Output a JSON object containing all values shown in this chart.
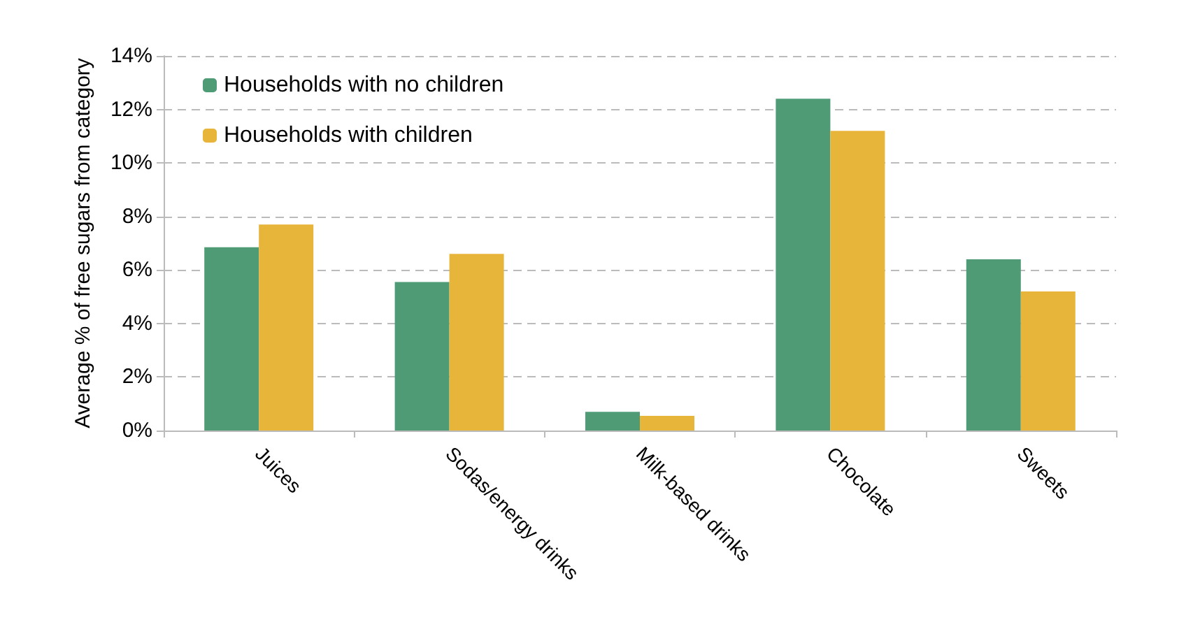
{
  "chart_data": {
    "type": "bar",
    "ylabel": "Average % of free sugars from category",
    "categories": [
      "Juices",
      "Sodas/energy drinks",
      "Milk-based drinks",
      "Chocolate",
      "Sweets"
    ],
    "series": [
      {
        "name": "Households with no children",
        "color": "#4e9b76",
        "values": [
          6.85,
          5.55,
          0.7,
          12.4,
          6.4
        ]
      },
      {
        "name": "Households with children",
        "color": "#e8b53b",
        "values": [
          7.7,
          6.6,
          0.55,
          11.2,
          5.2
        ]
      }
    ],
    "ylim": [
      0,
      14
    ],
    "yticks": [
      {
        "value": 0,
        "label": "0%"
      },
      {
        "value": 2,
        "label": "2%"
      },
      {
        "value": 4,
        "label": "4%"
      },
      {
        "value": 6,
        "label": "6%"
      },
      {
        "value": 8,
        "label": "8%"
      },
      {
        "value": 10,
        "label": "10%"
      },
      {
        "value": 12,
        "label": "12%"
      },
      {
        "value": 14,
        "label": "14%"
      }
    ],
    "grid": "y",
    "legend": "top left"
  }
}
